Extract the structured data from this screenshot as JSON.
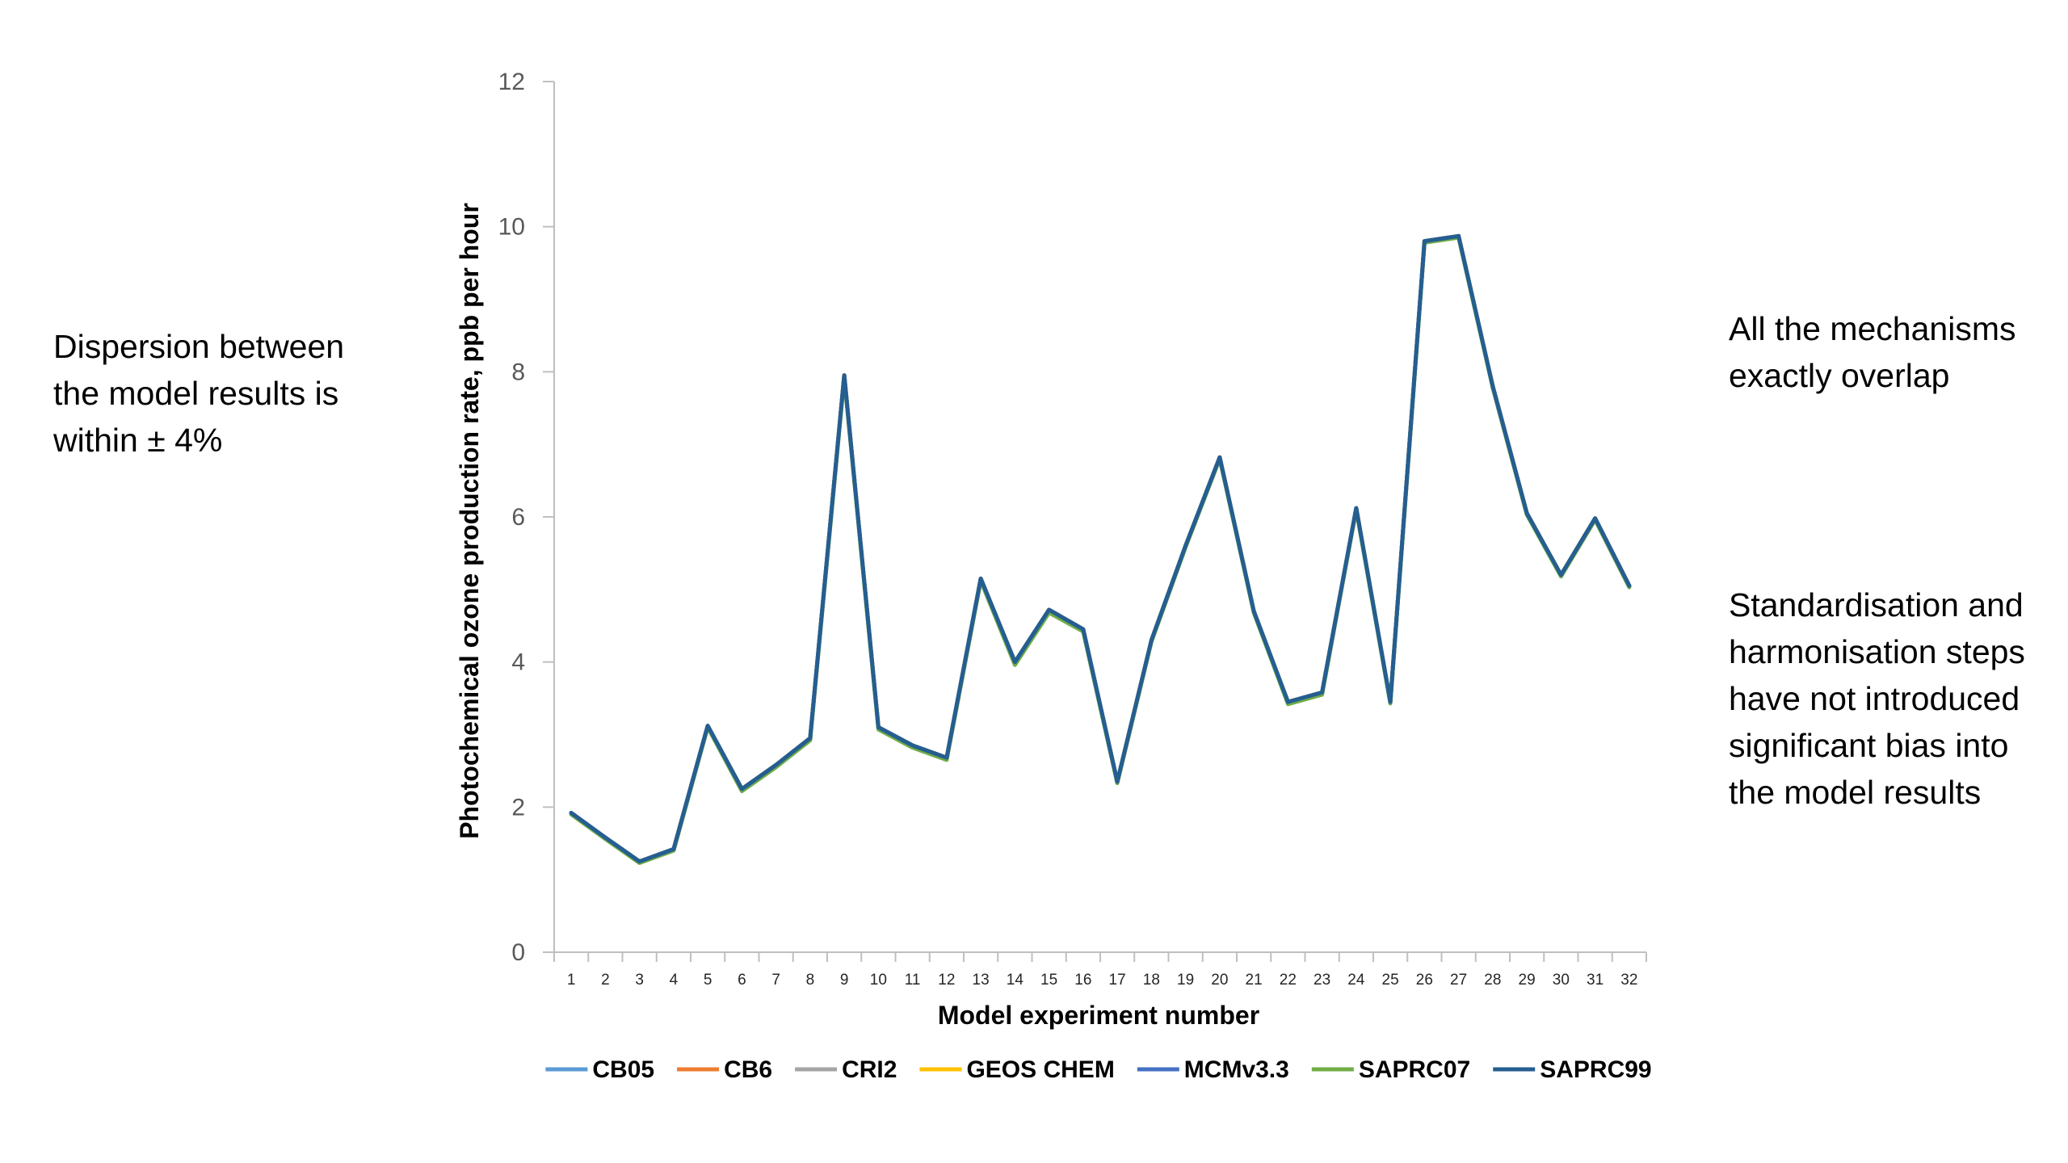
{
  "annotations": {
    "left": "Dispersion between the model results is within ± 4%",
    "right_top": "All the mechanisms exactly overlap",
    "right_bottom": "Standardisation and harmonisation steps have not introduced significant bias into the model results"
  },
  "chart_data": {
    "type": "line",
    "title": "",
    "xlabel": "Model experiment number",
    "ylabel": "Photochemical ozone production rate, ppb per hour",
    "ylim": [
      0,
      12
    ],
    "yticks": [
      0,
      2,
      4,
      6,
      8,
      10,
      12
    ],
    "grid": false,
    "legend_position": "bottom",
    "categories": [
      "1",
      "2",
      "3",
      "4",
      "5",
      "6",
      "7",
      "8",
      "9",
      "10",
      "11",
      "12",
      "13",
      "14",
      "15",
      "16",
      "17",
      "18",
      "19",
      "20",
      "21",
      "22",
      "23",
      "24",
      "25",
      "26",
      "27",
      "28",
      "29",
      "30",
      "31",
      "32"
    ],
    "series": [
      {
        "name": "CB05",
        "color": "#5b9bd5",
        "values": [
          1.92,
          1.58,
          1.25,
          1.42,
          3.12,
          2.25,
          2.58,
          2.95,
          7.95,
          3.1,
          2.85,
          2.68,
          5.15,
          4.0,
          4.72,
          4.45,
          2.35,
          4.3,
          5.6,
          6.82,
          4.7,
          3.45,
          3.58,
          6.12,
          3.45,
          9.8,
          9.87,
          7.8,
          6.05,
          5.2,
          5.98,
          5.05
        ]
      },
      {
        "name": "CB6",
        "color": "#ed7d31",
        "values": [
          1.92,
          1.58,
          1.25,
          1.42,
          3.12,
          2.25,
          2.58,
          2.95,
          7.95,
          3.1,
          2.85,
          2.68,
          5.15,
          4.0,
          4.72,
          4.45,
          2.35,
          4.3,
          5.6,
          6.82,
          4.7,
          3.45,
          3.58,
          6.12,
          3.45,
          9.8,
          9.87,
          7.8,
          6.05,
          5.2,
          5.98,
          5.05
        ]
      },
      {
        "name": "CRI2",
        "color": "#a5a5a5",
        "values": [
          1.92,
          1.58,
          1.25,
          1.42,
          3.12,
          2.25,
          2.58,
          2.95,
          7.95,
          3.1,
          2.85,
          2.68,
          5.15,
          4.0,
          4.72,
          4.45,
          2.35,
          4.3,
          5.6,
          6.82,
          4.7,
          3.45,
          3.58,
          6.12,
          3.45,
          9.8,
          9.87,
          7.8,
          6.05,
          5.2,
          5.98,
          5.05
        ]
      },
      {
        "name": "GEOS CHEM",
        "color": "#ffc000",
        "values": [
          1.92,
          1.58,
          1.25,
          1.42,
          3.12,
          2.25,
          2.58,
          2.95,
          7.95,
          3.1,
          2.85,
          2.68,
          5.15,
          4.0,
          4.72,
          4.45,
          2.35,
          4.3,
          5.6,
          6.82,
          4.7,
          3.45,
          3.58,
          6.12,
          3.45,
          9.8,
          9.87,
          7.8,
          6.05,
          5.2,
          5.98,
          5.05
        ]
      },
      {
        "name": "MCMv3.3",
        "color": "#4472c4",
        "values": [
          1.92,
          1.58,
          1.25,
          1.42,
          3.12,
          2.25,
          2.58,
          2.95,
          7.95,
          3.1,
          2.85,
          2.68,
          5.15,
          4.0,
          4.72,
          4.45,
          2.35,
          4.3,
          5.6,
          6.82,
          4.7,
          3.45,
          3.58,
          6.12,
          3.45,
          9.8,
          9.87,
          7.8,
          6.05,
          5.2,
          5.98,
          5.05
        ]
      },
      {
        "name": "SAPRC07",
        "color": "#70ad47",
        "values": [
          1.9,
          1.56,
          1.23,
          1.4,
          3.1,
          2.22,
          2.55,
          2.92,
          7.92,
          3.07,
          2.82,
          2.65,
          5.12,
          3.96,
          4.68,
          4.42,
          2.33,
          4.28,
          5.58,
          6.8,
          4.68,
          3.42,
          3.55,
          6.1,
          3.43,
          9.78,
          9.85,
          7.78,
          6.03,
          5.18,
          5.96,
          5.03
        ]
      },
      {
        "name": "SAPRC99",
        "color": "#255e91",
        "values": [
          1.92,
          1.58,
          1.25,
          1.42,
          3.12,
          2.25,
          2.58,
          2.95,
          7.95,
          3.1,
          2.85,
          2.68,
          5.15,
          4.0,
          4.72,
          4.45,
          2.35,
          4.3,
          5.6,
          6.82,
          4.7,
          3.45,
          3.58,
          6.12,
          3.45,
          9.8,
          9.87,
          7.8,
          6.05,
          5.2,
          5.98,
          5.05
        ]
      }
    ]
  }
}
